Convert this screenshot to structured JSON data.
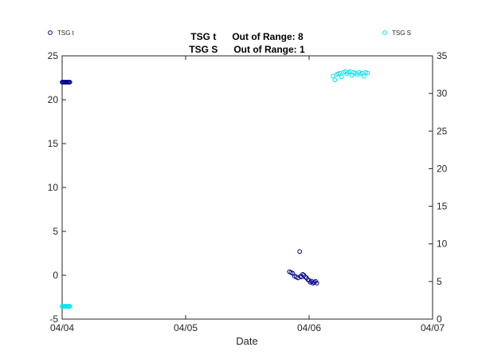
{
  "chart_data": {
    "type": "scatter",
    "title_lines": [
      "TSG t      Out of Range: 8",
      "TSG S      Out of Range: 1"
    ],
    "xlabel": "Date",
    "x_ticks": [
      "04/04",
      "04/05",
      "04/06",
      "04/07"
    ],
    "xlim": [
      "04/04",
      "04/07"
    ],
    "y_left": {
      "lim": [
        -5,
        25
      ],
      "ticks": [
        -5,
        0,
        5,
        10,
        15,
        20,
        25
      ]
    },
    "y_right": {
      "lim": [
        0,
        35
      ],
      "ticks": [
        0,
        5,
        10,
        15,
        20,
        25,
        30,
        35
      ]
    },
    "grid": false,
    "legend": [
      {
        "label": "TSG t",
        "color": "#00008b",
        "placement": "top-left"
      },
      {
        "label": "TSG S",
        "color": "#00e5ee",
        "placement": "top-right"
      }
    ],
    "series": [
      {
        "name": "TSG t",
        "axis": "left",
        "color": "#00008b",
        "marker": "open-circle",
        "x": [
          "04/04 00:00",
          "04/04 00:10",
          "04/04 00:20",
          "04/04 00:30",
          "04/04 00:40",
          "04/04 00:50",
          "04/04 01:00",
          "04/04 01:10",
          "04/04 01:20",
          "04/04 01:30",
          "04/05 20:10",
          "04/05 20:30",
          "04/05 20:50",
          "04/05 21:10",
          "04/05 21:30",
          "04/05 21:50",
          "04/05 22:10",
          "04/05 22:20",
          "04/05 22:30",
          "04/05 22:45",
          "04/05 23:00",
          "04/05 23:15",
          "04/05 23:30",
          "04/05 23:45",
          "04/06 00:00",
          "04/06 00:15",
          "04/06 00:30",
          "04/06 00:45",
          "04/06 01:00",
          "04/06 01:15",
          "04/06 01:30"
        ],
        "y": [
          22,
          22,
          22,
          22,
          22,
          22,
          22,
          22,
          22,
          22,
          0.4,
          0.3,
          0.2,
          -0.1,
          -0.2,
          -0.3,
          2.7,
          -0.1,
          -0.2,
          0.1,
          0.0,
          -0.2,
          -0.3,
          -0.5,
          -0.6,
          -0.8,
          -0.7,
          -0.9,
          -0.8,
          -0.7,
          -0.9
        ]
      },
      {
        "name": "TSG S",
        "axis": "right",
        "color": "#00e5ee",
        "marker": "open-circle",
        "x": [
          "04/04 00:00",
          "04/04 00:10",
          "04/04 00:20",
          "04/04 00:30",
          "04/04 00:40",
          "04/04 00:50",
          "04/04 01:00",
          "04/04 01:10",
          "04/04 01:20",
          "04/04 01:30",
          "04/06 04:40",
          "04/06 05:00",
          "04/06 05:20",
          "04/06 05:40",
          "04/06 06:00",
          "04/06 06:20",
          "04/06 06:40",
          "04/06 07:00",
          "04/06 07:20",
          "04/06 07:40",
          "04/06 08:00",
          "04/06 08:20",
          "04/06 08:40",
          "04/06 09:00",
          "04/06 09:20",
          "04/06 09:40",
          "04/06 10:00",
          "04/06 10:20",
          "04/06 10:40",
          "04/06 11:00",
          "04/06 11:20"
        ],
        "y": [
          1.7,
          1.7,
          1.7,
          1.7,
          1.7,
          1.7,
          1.7,
          1.7,
          1.7,
          1.7,
          32.3,
          31.8,
          32.5,
          32.6,
          32.7,
          32.2,
          32.8,
          32.9,
          32.6,
          32.8,
          32.9,
          32.4,
          32.8,
          32.7,
          32.5,
          32.8,
          32.6,
          32.7,
          32.3,
          32.8,
          32.7
        ]
      }
    ]
  }
}
